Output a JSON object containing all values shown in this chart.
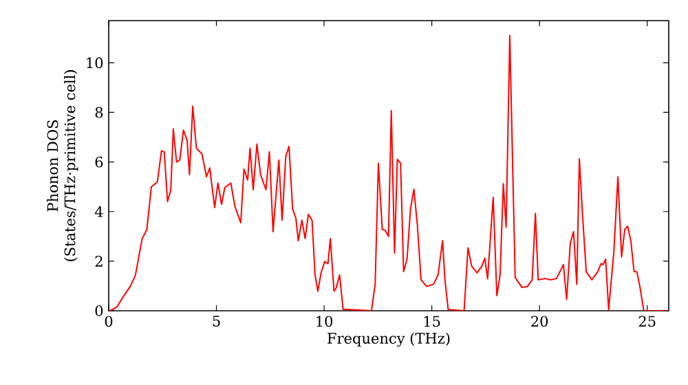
{
  "chart_data": {
    "type": "line",
    "xlabel": "Frequency (THz)",
    "ylabel": "Phonon DOS\n(States/THz·primitive cell)",
    "xlim": [
      0,
      26
    ],
    "ylim": [
      0,
      11.7
    ],
    "xticks": [
      0,
      5,
      10,
      15,
      20,
      25
    ],
    "yticks": [
      0,
      2,
      4,
      6,
      8,
      10
    ],
    "grid": false,
    "series": [
      {
        "color": "#ff0000",
        "x": [
          0.06,
          0.38,
          0.7,
          1.0,
          1.24,
          1.55,
          1.77,
          1.98,
          2.26,
          2.45,
          2.58,
          2.73,
          2.88,
          3.0,
          3.15,
          3.3,
          3.47,
          3.64,
          3.75,
          3.9,
          4.07,
          4.33,
          4.54,
          4.69,
          4.92,
          5.07,
          5.24,
          5.39,
          5.67,
          5.86,
          6.13,
          6.28,
          6.45,
          6.56,
          6.71,
          6.88,
          7.05,
          7.3,
          7.46,
          7.63,
          7.9,
          8.05,
          8.22,
          8.37,
          8.54,
          8.69,
          8.8,
          8.97,
          9.12,
          9.27,
          9.44,
          9.58,
          9.71,
          9.86,
          10.03,
          10.18,
          10.29,
          10.46,
          10.56,
          10.72,
          10.88,
          12.2,
          12.37,
          12.52,
          12.7,
          12.84,
          12.99,
          13.12,
          13.27,
          13.4,
          13.55,
          13.69,
          13.85,
          14.01,
          14.17,
          14.33,
          14.5,
          14.76,
          15.08,
          15.29,
          15.5,
          15.61,
          15.76,
          16.5,
          16.68,
          16.85,
          17.1,
          17.32,
          17.46,
          17.59,
          17.85,
          18.02,
          18.17,
          18.32,
          18.45,
          18.62,
          18.87,
          19.19,
          19.44,
          19.66,
          19.81,
          19.94,
          20.26,
          20.51,
          20.79,
          21.11,
          21.26,
          21.43,
          21.58,
          21.73,
          21.85,
          22.0,
          22.17,
          22.43,
          22.7,
          22.86,
          22.96,
          23.07,
          23.21,
          23.45,
          23.64,
          23.81,
          23.96,
          24.09,
          24.24,
          24.39,
          24.52,
          24.66,
          24.84,
          25.94
        ],
        "values": [
          0,
          0.15,
          0.6,
          0.98,
          1.43,
          2.9,
          3.27,
          5.0,
          5.2,
          6.45,
          6.4,
          4.4,
          4.85,
          7.33,
          6.0,
          6.08,
          7.28,
          6.87,
          5.49,
          8.25,
          6.56,
          6.32,
          5.4,
          5.76,
          4.16,
          5.15,
          4.29,
          4.97,
          5.15,
          4.2,
          3.55,
          5.71,
          5.27,
          6.56,
          4.88,
          6.72,
          5.49,
          4.88,
          6.41,
          3.19,
          6.08,
          3.65,
          6.22,
          6.63,
          4.1,
          3.74,
          2.82,
          3.65,
          2.91,
          3.89,
          3.65,
          1.44,
          0.79,
          1.53,
          1.99,
          1.9,
          2.91,
          0.79,
          0.92,
          1.44,
          0.06,
          0,
          1.07,
          5.95,
          3.28,
          3.24,
          3.0,
          8.07,
          2.32,
          6.11,
          5.95,
          1.58,
          2.08,
          4.1,
          4.9,
          3.46,
          1.25,
          0.98,
          1.07,
          1.44,
          2.82,
          1.25,
          0.05,
          0,
          2.54,
          1.8,
          1.53,
          1.8,
          2.12,
          1.29,
          4.57,
          0.61,
          1.44,
          5.12,
          3.37,
          11.1,
          1.34,
          0.94,
          0.98,
          1.25,
          3.92,
          1.25,
          1.3,
          1.25,
          1.3,
          1.86,
          0.46,
          2.72,
          3.19,
          1.07,
          6.13,
          3.83,
          1.57,
          1.25,
          1.57,
          1.9,
          1.86,
          2.08,
          0.05,
          2.36,
          5.4,
          2.17,
          3.28,
          3.41,
          2.82,
          1.58,
          1.57,
          0.98,
          0,
          0
        ]
      }
    ]
  }
}
